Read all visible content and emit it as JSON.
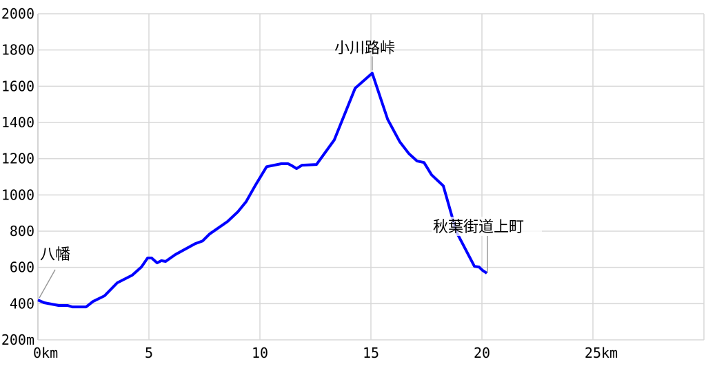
{
  "chart_data": {
    "type": "line",
    "title": "",
    "xlabel": "",
    "ylabel": "",
    "xlim": [
      0,
      30
    ],
    "ylim": [
      200,
      2000
    ],
    "grid": true,
    "x_ticks": [
      0,
      5,
      10,
      15,
      20,
      25
    ],
    "x_tick_labels": [
      "0km",
      "5",
      "10",
      "15",
      "20",
      "25km"
    ],
    "y_ticks": [
      200,
      400,
      600,
      800,
      1000,
      1200,
      1400,
      1600,
      1800,
      2000
    ],
    "y_tick_labels": [
      "200m",
      "400",
      "600",
      "800",
      "1000",
      "1200",
      "1400",
      "1600",
      "1800",
      "2000"
    ],
    "line_color": "#0000ff",
    "grid_color": "#d8d8d8",
    "series": [
      {
        "x": [
          0,
          0.28,
          0.93,
          1.34,
          1.55,
          2.17,
          2.48,
          3.0,
          3.57,
          4.25,
          4.66,
          4.94,
          5.12,
          5.37,
          5.56,
          5.75,
          6.18,
          7.08,
          7.42,
          7.73,
          8.54,
          9.0,
          9.38,
          9.78,
          10.3,
          10.96,
          11.27,
          11.46,
          11.65,
          11.9,
          12.55,
          13.35,
          14.29,
          15.06,
          15.75,
          16.3,
          16.71,
          17.08,
          17.39,
          17.73,
          18.26,
          18.85,
          19.66,
          19.87,
          20.03,
          20.22
        ],
        "y": [
          420,
          405,
          390,
          390,
          382,
          382,
          412,
          443,
          515,
          557,
          602,
          652,
          652,
          625,
          637,
          633,
          670,
          731,
          746,
          784,
          853,
          906,
          963,
          1050,
          1156,
          1172,
          1172,
          1160,
          1145,
          1164,
          1168,
          1304,
          1589,
          1672,
          1418,
          1293,
          1228,
          1187,
          1179,
          1111,
          1050,
          796,
          606,
          602,
          583,
          568
        ]
      }
    ],
    "annotations": [
      {
        "text": "八幡",
        "x": 0,
        "y": 420
      },
      {
        "text": "小川路峠",
        "x": 15.06,
        "y": 1672
      },
      {
        "text": "秋葉街道上町",
        "x": 20.22,
        "y": 568
      }
    ]
  }
}
